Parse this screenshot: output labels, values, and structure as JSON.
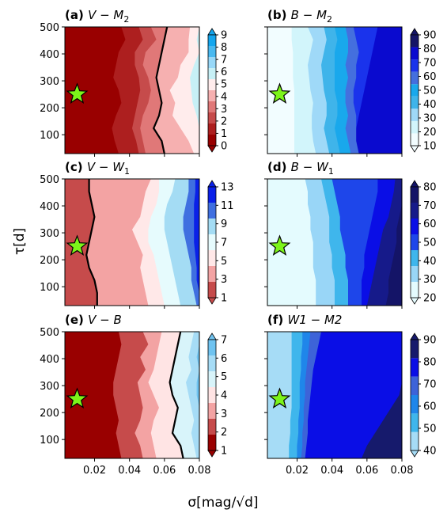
{
  "figure": {
    "ylabel": "τ[d]",
    "xlabel": "σ[mag/√d]"
  },
  "chart_data": [
    {
      "type": "heatmap",
      "panel_label": "(a)",
      "title": "V − M2",
      "title_sub": "2",
      "title_base": "V − M",
      "colormap": "reds-blues-diverging",
      "xlim": [
        0.003,
        0.08
      ],
      "ylim": [
        30,
        500
      ],
      "x_ticks": [
        0.02,
        0.04,
        0.06,
        0.08
      ],
      "x_tick_labels": [
        "",
        "",
        "",
        ""
      ],
      "y_ticks": [
        100,
        200,
        300,
        400,
        500
      ],
      "y_tick_labels": [
        "100",
        "200",
        "300",
        "400",
        "500"
      ],
      "colorbar_ticks": [
        "0",
        "1",
        "2",
        "3",
        "4",
        "5",
        "6",
        "7",
        "8",
        "9"
      ],
      "colorbar_colors": [
        "#990000",
        "#ad1f1f",
        "#c64b4b",
        "#e07878",
        "#f6b0b0",
        "#ffecec",
        "#c7f0f6",
        "#98d8f8",
        "#49b9f0",
        "#14a6ee"
      ],
      "columns_sigma": [
        0.01,
        0.03,
        0.05,
        0.07,
        0.08
      ],
      "contour_threshold": 4.7,
      "star": {
        "sigma": 0.01,
        "tau": 250
      }
    },
    {
      "type": "heatmap",
      "panel_label": "(b)",
      "title": "B − M2",
      "title_sub": "2",
      "title_base": "B − M",
      "colormap": "blues",
      "xlim": [
        0.003,
        0.08
      ],
      "ylim": [
        30,
        500
      ],
      "x_ticks": [
        0.02,
        0.04,
        0.06,
        0.08
      ],
      "x_tick_labels": [
        "",
        "",
        "",
        ""
      ],
      "y_ticks": [
        100,
        200,
        300,
        400,
        500
      ],
      "y_tick_labels": [
        "",
        "",
        "",
        "",
        ""
      ],
      "colorbar_ticks": [
        "10",
        "20",
        "30",
        "40",
        "50",
        "60",
        "70",
        "80",
        "90"
      ],
      "colorbar_colors": [
        "#f2fdff",
        "#d2f5fb",
        "#9fd9f8",
        "#3fb4ea",
        "#19a8ec",
        "#446fde",
        "#1a33ec",
        "#0a0acf",
        "#141467"
      ],
      "star": {
        "sigma": 0.01,
        "tau": 250
      }
    },
    {
      "type": "heatmap",
      "panel_label": "(c)",
      "title": "V − W1",
      "title_sub": "1",
      "title_base": "V − W",
      "colormap": "reds-blues-diverging",
      "xlim": [
        0.003,
        0.08
      ],
      "ylim": [
        30,
        500
      ],
      "x_ticks": [
        0.02,
        0.04,
        0.06,
        0.08
      ],
      "x_tick_labels": [
        "",
        "",
        "",
        ""
      ],
      "y_ticks": [
        100,
        200,
        300,
        400,
        500
      ],
      "y_tick_labels": [
        "100",
        "200",
        "300",
        "400",
        "500"
      ],
      "colorbar_ticks": [
        "1",
        "3",
        "5",
        "7",
        "9",
        "11",
        "13"
      ],
      "colorbar_colors": [
        "#c64b4b",
        "#f3a3a3",
        "#ffe8e8",
        "#e6fbfd",
        "#a4dcf4",
        "#3f6fe0",
        "#0a20e8"
      ],
      "star": {
        "sigma": 0.01,
        "tau": 250
      }
    },
    {
      "type": "heatmap",
      "panel_label": "(d)",
      "title": "B − W1",
      "title_sub": "1",
      "title_base": "B − W",
      "colormap": "blues",
      "xlim": [
        0.003,
        0.08
      ],
      "ylim": [
        30,
        500
      ],
      "x_ticks": [
        0.02,
        0.04,
        0.06,
        0.08
      ],
      "x_tick_labels": [
        "",
        "",
        "",
        ""
      ],
      "y_ticks": [
        100,
        200,
        300,
        400,
        500
      ],
      "y_tick_labels": [
        "",
        "",
        "",
        "",
        ""
      ],
      "colorbar_ticks": [
        "20",
        "30",
        "40",
        "50",
        "60",
        "70",
        "80"
      ],
      "colorbar_colors": [
        "#e4fbfe",
        "#99d6f7",
        "#3fb6ec",
        "#1e46ea",
        "#0a0ee6",
        "#161a8a",
        "#141467"
      ],
      "star": {
        "sigma": 0.01,
        "tau": 250
      }
    },
    {
      "type": "heatmap",
      "panel_label": "(e)",
      "title": "V − B",
      "title_sub": "",
      "title_base": "V − B",
      "colormap": "reds-blues-diverging",
      "xlim": [
        0.003,
        0.08
      ],
      "ylim": [
        30,
        500
      ],
      "x_ticks": [
        0.02,
        0.04,
        0.06,
        0.08
      ],
      "x_tick_labels": [
        "0.02",
        "0.04",
        "0.06",
        "0.08"
      ],
      "y_ticks": [
        100,
        200,
        300,
        400,
        500
      ],
      "y_tick_labels": [
        "100",
        "200",
        "300",
        "400",
        "500"
      ],
      "colorbar_ticks": [
        "1",
        "2",
        "3",
        "4",
        "5",
        "6",
        "7"
      ],
      "colorbar_colors": [
        "#990000",
        "#c64b4b",
        "#f3a3a3",
        "#ffe4e4",
        "#d8f4fa",
        "#a6dcf6",
        "#6fc3f0"
      ],
      "star": {
        "sigma": 0.01,
        "tau": 250
      }
    },
    {
      "type": "heatmap",
      "panel_label": "(f)",
      "title": "W1 − M2",
      "title_sub": "",
      "title_base": "W1 − M2",
      "colormap": "blues",
      "xlim": [
        0.003,
        0.08
      ],
      "ylim": [
        30,
        500
      ],
      "x_ticks": [
        0.02,
        0.04,
        0.06,
        0.08
      ],
      "x_tick_labels": [
        "0.02",
        "0.04",
        "0.06",
        "0.08"
      ],
      "y_ticks": [
        100,
        200,
        300,
        400,
        500
      ],
      "y_tick_labels": [
        "",
        "",
        "",
        "",
        ""
      ],
      "colorbar_ticks": [
        "40",
        "50",
        "60",
        "70",
        "80",
        "90"
      ],
      "colorbar_colors": [
        "#a6dcf6",
        "#3fb6ec",
        "#1f86ea",
        "#3d63d8",
        "#0a0ee6",
        "#161a6c"
      ],
      "star": {
        "sigma": 0.01,
        "tau": 250
      }
    }
  ]
}
